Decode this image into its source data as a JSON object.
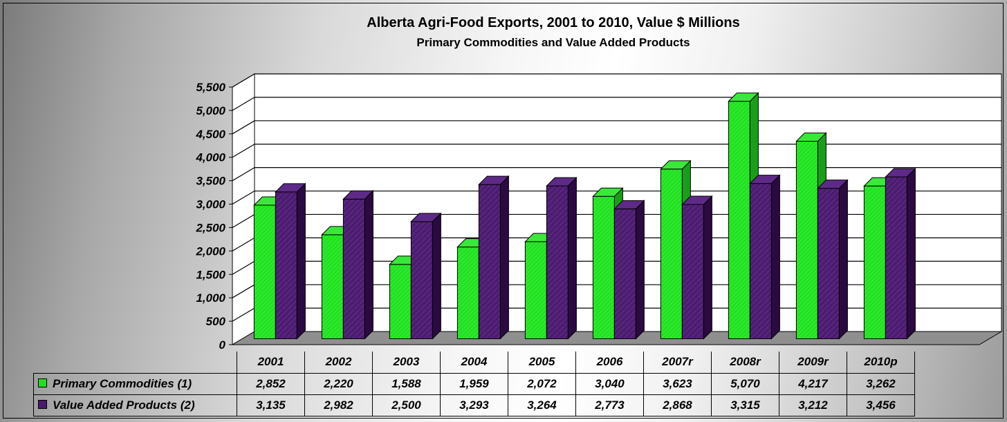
{
  "chart_data": {
    "type": "bar",
    "title": "Alberta Agri-Food Exports, 2001 to 2010, Value $ Millions",
    "subtitle": "Primary Commodities and Value Added Products",
    "categories": [
      "2001",
      "2002",
      "2003",
      "2004",
      "2005",
      "2006",
      "2007r",
      "2008r",
      "2009r",
      "2010p"
    ],
    "series": [
      {
        "name": "Primary Commodities (1)",
        "color": "#22dd22",
        "values": [
          2852,
          2220,
          1588,
          1959,
          2072,
          3040,
          3623,
          5070,
          4217,
          3262
        ],
        "labels": [
          "2,852",
          "2,220",
          "1,588",
          "1,959",
          "2,072",
          "3,040",
          "3,623",
          "5,070",
          "4,217",
          "3,262"
        ]
      },
      {
        "name": "Value Added Products (2)",
        "color": "#4a1a6e",
        "values": [
          3135,
          2982,
          2500,
          3293,
          3264,
          2773,
          2868,
          3315,
          3212,
          3456
        ],
        "labels": [
          "3,135",
          "2,982",
          "2,500",
          "3,293",
          "3,264",
          "2,773",
          "2,868",
          "3,315",
          "3,212",
          "3,456"
        ]
      }
    ],
    "yticks": [
      "0",
      "500",
      "1,000",
      "1,500",
      "2,000",
      "2,500",
      "3,000",
      "3,500",
      "4,000",
      "4,500",
      "5,000",
      "5,500"
    ],
    "ylim": [
      0,
      5500
    ],
    "grid": true,
    "legend": "data table below chart"
  }
}
